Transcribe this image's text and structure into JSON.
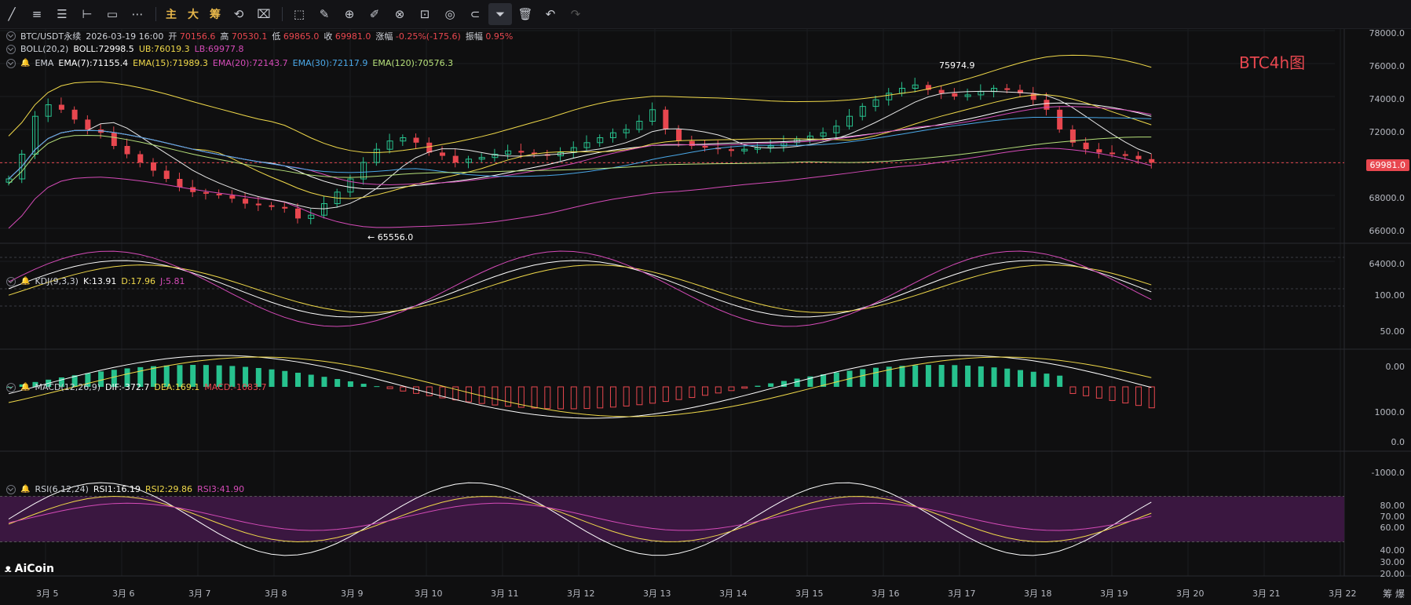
{
  "toolbar": {
    "tools": [
      "line-tool-icon",
      "hline-tool-icon",
      "channel-tool-icon",
      "ray-tool-icon",
      "rect-tool-icon",
      "dots-tool-icon"
    ],
    "text_buttons": [
      "主",
      "大",
      "筹"
    ],
    "tools2": [
      "replay-icon",
      "ruler-icon",
      "zoom-icon",
      "brush-icon",
      "measure-icon",
      "lock-icon",
      "eye-icon",
      "magnet-icon",
      "filter-icon",
      "trash-icon",
      "undo-icon",
      "redo-icon"
    ]
  },
  "header": {
    "symbol": "BTC/USDT永续",
    "datetime": "2026-03-19 16:00",
    "open_label": "开",
    "open": "70156.6",
    "high_label": "高",
    "high": "70530.1",
    "low_label": "低",
    "low": "69865.0",
    "close_label": "收",
    "close": "69981.0",
    "change_label": "涨幅",
    "change": "-0.25%(-175.6)",
    "amp_label": "振幅",
    "amp": "0.95%"
  },
  "boll": {
    "name": "BOLL(20,2)",
    "mid": "BOLL:72998.5",
    "ub": "UB:76019.3",
    "lb": "LB:69977.8"
  },
  "ema": {
    "name": "EMA",
    "e7": "EMA(7):71155.4",
    "e15": "EMA(15):71989.3",
    "e20": "EMA(20):72143.7",
    "e30": "EMA(30):72117.9",
    "e120": "EMA(120):70576.3"
  },
  "kdj": {
    "name": "KDJ(9,3,3)",
    "k": "K:13.91",
    "d": "D:17.96",
    "j": "J:5.81"
  },
  "macd": {
    "name": "MACD(12,26,9)",
    "dif": "DIF:-372.7",
    "dea": "DEA:169.1",
    "macd": "MACD:-1083.7"
  },
  "rsi": {
    "name": "RSI(6,12,24)",
    "r1": "RSI1:16.19",
    "r2": "RSI2:29.86",
    "r3": "RSI3:41.90"
  },
  "price_axis": [
    "78000.0",
    "76000.0",
    "74000.0",
    "72000.0",
    "70000.0",
    "68000.0",
    "66000.0",
    "64000.0"
  ],
  "last_price": "69981.0",
  "kdj_axis": [
    "100.00",
    "50.00",
    "0.00"
  ],
  "macd_axis": [
    "1000.0",
    "0.0",
    "-1000.0"
  ],
  "rsi_axis": [
    "80.00",
    "70.00",
    "60.00",
    "40.00",
    "30.00",
    "20.00"
  ],
  "dates": [
    "3月 5",
    "3月 6",
    "3月 7",
    "3月 8",
    "3月 9",
    "3月 10",
    "3月 11",
    "3月 12",
    "3月 13",
    "3月 14",
    "3月 15",
    "3月 16",
    "3月 17",
    "3月 18",
    "3月 19",
    "3月 20",
    "3月 21",
    "3月 22"
  ],
  "high_mark": "75974.9",
  "low_mark": "← 65556.0",
  "chart_title": "BTC4h图",
  "logo": "AiCoin",
  "corner": "筹 爆",
  "colors": {
    "up": "#27c28e",
    "down": "#e8474f",
    "ub": "#f0d94a",
    "lb": "#d54bb8",
    "mid": "#ffffff"
  }
}
